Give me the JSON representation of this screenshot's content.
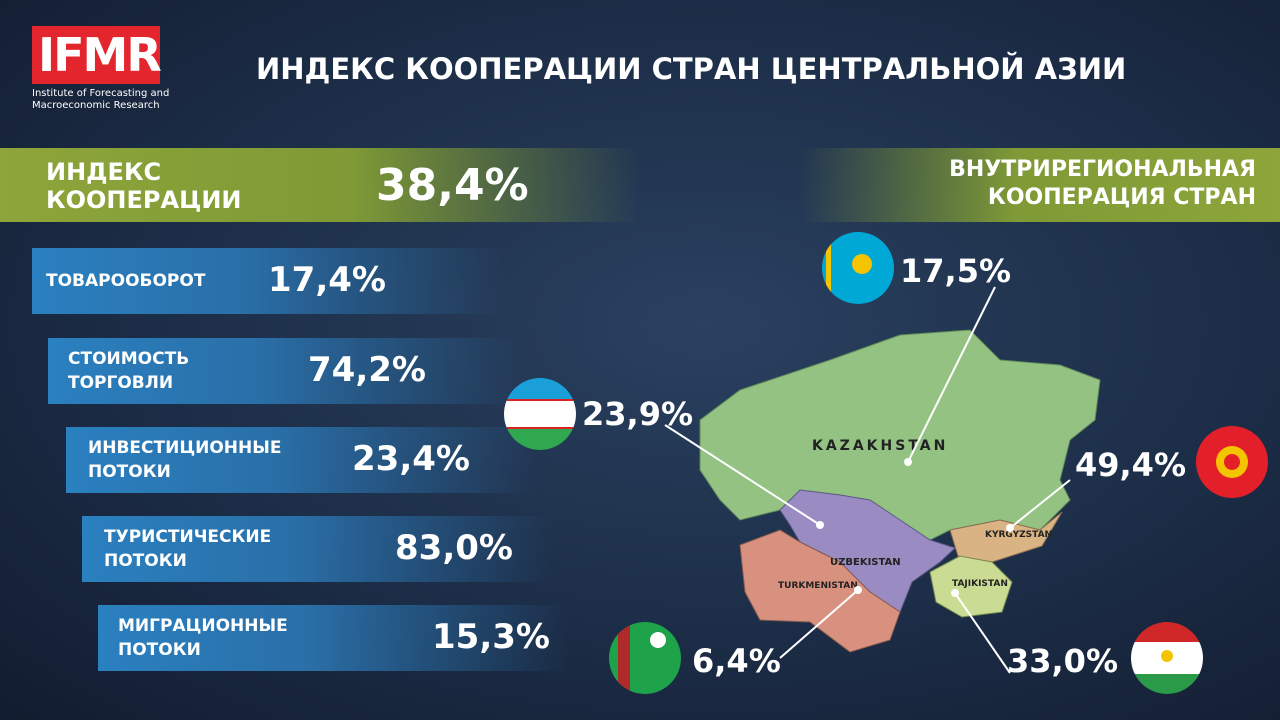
{
  "logo": {
    "name": "IFMR",
    "subtitle": [
      "Institute of Forecasting and",
      "Macroeconomic Research"
    ]
  },
  "title": "ИНДЕКС КООПЕРАЦИИ СТРАН ЦЕНТРАЛЬНОЙ АЗИИ",
  "index": {
    "label": [
      "ИНДЕКС",
      "КООПЕРАЦИИ"
    ],
    "value": "38,4%"
  },
  "items": [
    {
      "label": [
        "ТОВАРООБОРОТ"
      ],
      "value": "17,4%"
    },
    {
      "label": [
        "СТОИМОСТЬ",
        "ТОРГОВЛИ"
      ],
      "value": "74,2%"
    },
    {
      "label": [
        "ИНВЕСТИЦИОННЫЕ",
        "ПОТОКИ"
      ],
      "value": "23,4%"
    },
    {
      "label": [
        "ТУРИСТИЧЕСКИЕ",
        "ПОТОКИ"
      ],
      "value": "83,0%"
    },
    {
      "label": [
        "МИГРАЦИОННЫЕ",
        "ПОТОКИ"
      ],
      "value": "15,3%"
    }
  ],
  "regional": {
    "heading": [
      "ВНУТРИРЕГИОНАЛЬНАЯ",
      "КООПЕРАЦИЯ СТРАН"
    ],
    "countries": [
      {
        "name": "KAZAKHSTAN",
        "value": "17,5%"
      },
      {
        "name": "UZBEKISTAN",
        "value": "23,9%"
      },
      {
        "name": "KYRGYZSTAN",
        "value": "49,4%"
      },
      {
        "name": "TURKMENISTAN",
        "value": "6,4%"
      },
      {
        "name": "TAJIKISTAN",
        "value": "33,0%"
      }
    ]
  }
}
